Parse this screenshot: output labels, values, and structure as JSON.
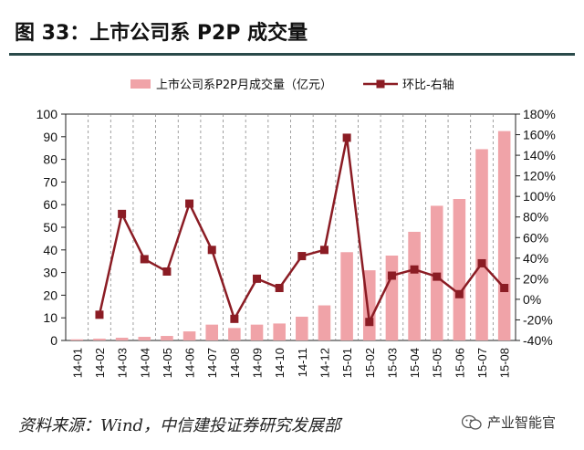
{
  "title": "图 33：上市公司系 P2P 成交量",
  "source": "资料来源：Wind，中信建投证券研究发展部",
  "brand": {
    "label": "产业智能官",
    "icon": "wechat-icon"
  },
  "colors": {
    "bar": "#f0a3a8",
    "line": "#8b1c24",
    "rule": "#2a4a4a"
  },
  "chart_data": {
    "type": "bar+line",
    "categories": [
      "14-01",
      "14-02",
      "14-03",
      "14-04",
      "14-05",
      "14-06",
      "14-07",
      "14-08",
      "14-09",
      "14-10",
      "14-11",
      "14-12",
      "15-01",
      "15-02",
      "15-03",
      "15-04",
      "15-05",
      "15-06",
      "15-07",
      "15-08"
    ],
    "series": [
      {
        "name": "上市公司系P2P月成交量（亿元）",
        "type": "bar",
        "axis": "left",
        "values": [
          0.5,
          0.8,
          1.2,
          1.6,
          2.0,
          4.0,
          7.0,
          5.5,
          7.0,
          7.5,
          10.5,
          15.5,
          39.0,
          31.0,
          37.5,
          48.0,
          59.5,
          62.5,
          84.5,
          92.5
        ]
      },
      {
        "name": "环比-右轴",
        "type": "line",
        "axis": "right",
        "values": [
          null,
          -15,
          83,
          39,
          27,
          93,
          48,
          -19,
          20,
          11,
          42,
          48,
          157,
          -22,
          23,
          29,
          22,
          5,
          35,
          11
        ]
      }
    ],
    "y_left": {
      "min": 0,
      "max": 100,
      "ticks": [
        0,
        10,
        20,
        30,
        40,
        50,
        60,
        70,
        80,
        90,
        100
      ]
    },
    "y_right": {
      "min": -40,
      "max": 180,
      "ticks": [
        "-40%",
        "-20%",
        "0%",
        "20%",
        "40%",
        "60%",
        "80%",
        "100%",
        "120%",
        "140%",
        "160%",
        "180%"
      ]
    },
    "grid": "vertical dashed",
    "legend": "top"
  }
}
